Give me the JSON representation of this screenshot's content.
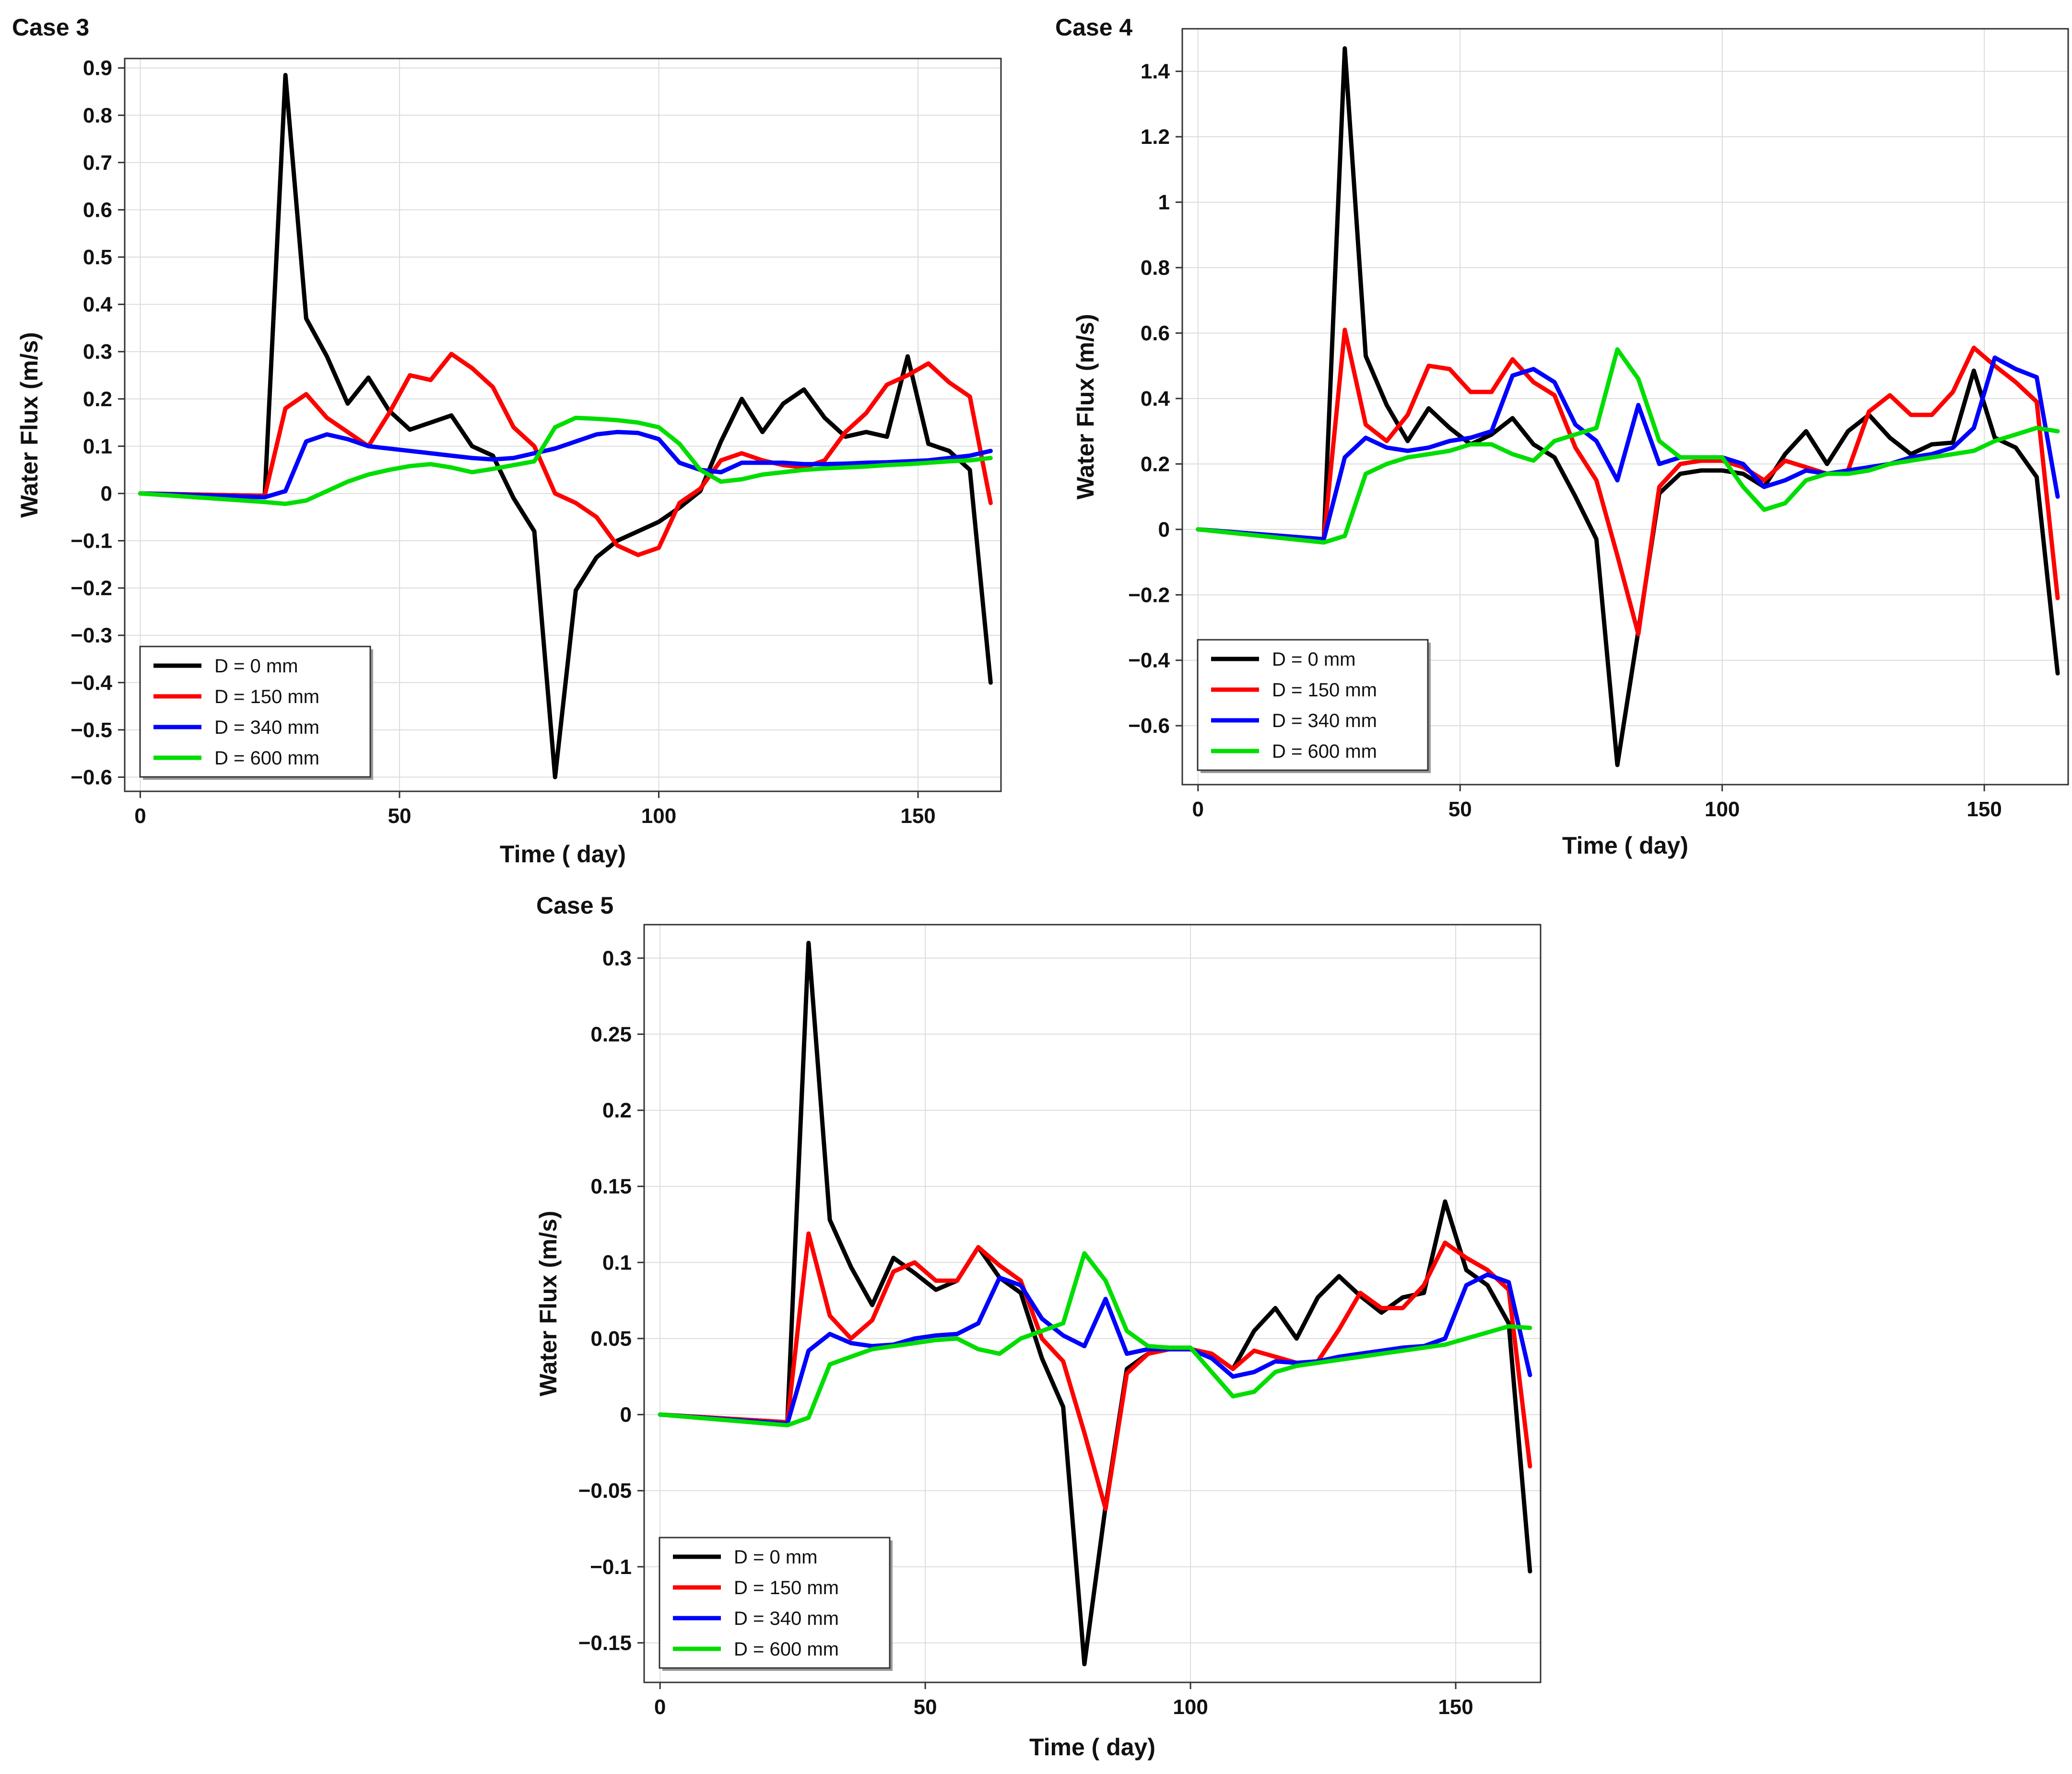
{
  "chart_data": [
    {
      "type": "line",
      "title": "Case 3",
      "xlabel": "Time ( day)",
      "ylabel": "Water Flux (m/s)",
      "xlim": [
        -3,
        166
      ],
      "ylim": [
        -0.63,
        0.92
      ],
      "xticks": [
        0,
        50,
        100,
        150
      ],
      "xtick_labels": [
        "0",
        "50",
        "100",
        "150"
      ],
      "yticks": [
        -0.6,
        -0.5,
        -0.4,
        -0.3,
        -0.2,
        -0.1,
        0,
        0.1,
        0.2,
        0.3,
        0.4,
        0.5,
        0.6,
        0.7,
        0.8,
        0.9
      ],
      "ytick_labels": [
        "−0.6",
        "−0.5",
        "−0.4",
        "−0.3",
        "−0.2",
        "−0.1",
        "0",
        "0.1",
        "0.2",
        "0.3",
        "0.4",
        "0.5",
        "0.6",
        "0.7",
        "0.8",
        "0.9"
      ],
      "grid": true,
      "legend_position": "bottom-left",
      "series": [
        {
          "name": "D = 0 mm",
          "color": "#000000",
          "x": [
            0,
            24,
            28,
            32,
            36,
            40,
            44,
            48,
            52,
            56,
            60,
            64,
            68,
            72,
            76,
            80,
            84,
            88,
            92,
            96,
            100,
            104,
            108,
            112,
            116,
            120,
            124,
            128,
            132,
            136,
            140,
            144,
            148,
            152,
            156,
            160,
            164
          ],
          "y": [
            0,
            -0.005,
            0.885,
            0.37,
            0.29,
            0.19,
            0.245,
            0.175,
            0.135,
            0.15,
            0.165,
            0.1,
            0.08,
            -0.01,
            -0.08,
            -0.6,
            -0.205,
            -0.135,
            -0.1,
            -0.08,
            -0.06,
            -0.03,
            0.005,
            0.11,
            0.2,
            0.13,
            0.19,
            0.22,
            0.16,
            0.12,
            0.13,
            0.12,
            0.29,
            0.105,
            0.09,
            0.05,
            -0.4
          ]
        },
        {
          "name": "D = 150 mm",
          "color": "#ff0000",
          "x": [
            0,
            24,
            28,
            32,
            36,
            40,
            44,
            48,
            52,
            56,
            60,
            64,
            68,
            72,
            76,
            80,
            84,
            88,
            92,
            96,
            100,
            104,
            108,
            112,
            116,
            120,
            124,
            128,
            132,
            136,
            140,
            144,
            148,
            152,
            156,
            160,
            164
          ],
          "y": [
            0,
            -0.005,
            0.18,
            0.21,
            0.16,
            0.13,
            0.1,
            0.17,
            0.25,
            0.24,
            0.295,
            0.265,
            0.225,
            0.14,
            0.1,
            0,
            -0.02,
            -0.05,
            -0.11,
            -0.13,
            -0.115,
            -0.02,
            0.01,
            0.07,
            0.085,
            0.07,
            0.06,
            0.055,
            0.07,
            0.13,
            0.17,
            0.23,
            0.25,
            0.275,
            0.235,
            0.205,
            -0.02
          ]
        },
        {
          "name": "D = 340 mm",
          "color": "#0000ff",
          "x": [
            0,
            24,
            28,
            32,
            36,
            40,
            44,
            48,
            52,
            56,
            60,
            64,
            68,
            72,
            76,
            80,
            84,
            88,
            92,
            96,
            100,
            104,
            108,
            112,
            116,
            120,
            124,
            128,
            132,
            136,
            140,
            144,
            148,
            152,
            156,
            160,
            164
          ],
          "y": [
            0,
            -0.008,
            0.005,
            0.11,
            0.125,
            0.115,
            0.1,
            0.095,
            0.09,
            0.085,
            0.08,
            0.075,
            0.072,
            0.075,
            0.085,
            0.095,
            0.11,
            0.125,
            0.13,
            0.128,
            0.115,
            0.065,
            0.05,
            0.045,
            0.065,
            0.065,
            0.065,
            0.062,
            0.062,
            0.063,
            0.065,
            0.066,
            0.068,
            0.07,
            0.075,
            0.08,
            0.09
          ]
        },
        {
          "name": "D = 600 mm",
          "color": "#00dd00",
          "x": [
            0,
            24,
            28,
            32,
            36,
            40,
            44,
            48,
            52,
            56,
            60,
            64,
            68,
            72,
            76,
            80,
            84,
            88,
            92,
            96,
            100,
            104,
            108,
            112,
            116,
            120,
            124,
            128,
            132,
            136,
            140,
            144,
            148,
            152,
            156,
            160,
            164
          ],
          "y": [
            0,
            -0.018,
            -0.022,
            -0.015,
            0.005,
            0.025,
            0.04,
            0.05,
            0.058,
            0.062,
            0.055,
            0.045,
            0.052,
            0.06,
            0.068,
            0.14,
            0.16,
            0.158,
            0.155,
            0.15,
            0.14,
            0.105,
            0.05,
            0.025,
            0.03,
            0.04,
            0.045,
            0.05,
            0.053,
            0.055,
            0.057,
            0.06,
            0.062,
            0.065,
            0.068,
            0.07,
            0.075
          ]
        }
      ]
    },
    {
      "type": "line",
      "title": "Case 4",
      "xlabel": "Time ( day)",
      "ylabel": "Water Flux (m/s)",
      "xlim": [
        -3,
        166
      ],
      "ylim": [
        -0.78,
        1.53
      ],
      "xticks": [
        0,
        50,
        100,
        150
      ],
      "xtick_labels": [
        "0",
        "50",
        "100",
        "150"
      ],
      "yticks": [
        -0.6,
        -0.4,
        -0.2,
        0,
        0.2,
        0.4,
        0.6,
        0.8,
        1,
        1.2,
        1.4
      ],
      "ytick_labels": [
        "−0.6",
        "−0.4",
        "−0.2",
        "0",
        "0.2",
        "0.4",
        "0.6",
        "0.8",
        "1",
        "1.2",
        "1.4"
      ],
      "grid": true,
      "legend_position": "bottom-left",
      "series": [
        {
          "name": "D = 0 mm",
          "color": "#000000",
          "x": [
            0,
            24,
            28,
            32,
            36,
            40,
            44,
            48,
            52,
            56,
            60,
            64,
            68,
            72,
            76,
            80,
            84,
            88,
            92,
            96,
            100,
            104,
            108,
            112,
            116,
            120,
            124,
            128,
            132,
            136,
            140,
            144,
            148,
            152,
            156,
            160,
            164
          ],
          "y": [
            0,
            -0.03,
            1.47,
            0.53,
            0.38,
            0.27,
            0.37,
            0.31,
            0.26,
            0.29,
            0.34,
            0.26,
            0.22,
            0.1,
            -0.03,
            -0.72,
            -0.31,
            0.11,
            0.17,
            0.18,
            0.18,
            0.17,
            0.13,
            0.23,
            0.3,
            0.2,
            0.3,
            0.35,
            0.28,
            0.23,
            0.26,
            0.265,
            0.485,
            0.28,
            0.25,
            0.16,
            -0.44
          ]
        },
        {
          "name": "D = 150 mm",
          "color": "#ff0000",
          "x": [
            0,
            24,
            28,
            32,
            36,
            40,
            44,
            48,
            52,
            56,
            60,
            64,
            68,
            72,
            76,
            80,
            84,
            88,
            92,
            96,
            100,
            104,
            108,
            112,
            116,
            120,
            124,
            128,
            132,
            136,
            140,
            144,
            148,
            152,
            156,
            160,
            164
          ],
          "y": [
            0,
            -0.03,
            0.61,
            0.32,
            0.27,
            0.35,
            0.5,
            0.49,
            0.42,
            0.42,
            0.52,
            0.45,
            0.41,
            0.25,
            0.15,
            -0.08,
            -0.32,
            0.13,
            0.2,
            0.21,
            0.21,
            0.19,
            0.15,
            0.21,
            0.19,
            0.17,
            0.18,
            0.36,
            0.41,
            0.35,
            0.35,
            0.42,
            0.555,
            0.5,
            0.45,
            0.39,
            -0.21
          ]
        },
        {
          "name": "D = 340 mm",
          "color": "#0000ff",
          "x": [
            0,
            24,
            28,
            32,
            36,
            40,
            44,
            48,
            52,
            56,
            60,
            64,
            68,
            72,
            76,
            80,
            84,
            88,
            92,
            96,
            100,
            104,
            108,
            112,
            116,
            120,
            124,
            128,
            132,
            136,
            140,
            144,
            148,
            152,
            156,
            160,
            164
          ],
          "y": [
            0,
            -0.03,
            0.22,
            0.28,
            0.25,
            0.24,
            0.25,
            0.27,
            0.28,
            0.3,
            0.47,
            0.49,
            0.45,
            0.32,
            0.27,
            0.15,
            0.38,
            0.2,
            0.22,
            0.22,
            0.22,
            0.2,
            0.13,
            0.15,
            0.18,
            0.17,
            0.18,
            0.19,
            0.2,
            0.22,
            0.23,
            0.25,
            0.31,
            0.525,
            0.49,
            0.465,
            0.1
          ]
        },
        {
          "name": "D = 600 mm",
          "color": "#00dd00",
          "x": [
            0,
            24,
            28,
            32,
            36,
            40,
            44,
            48,
            52,
            56,
            60,
            64,
            68,
            72,
            76,
            80,
            84,
            88,
            92,
            96,
            100,
            104,
            108,
            112,
            116,
            120,
            124,
            128,
            132,
            136,
            140,
            144,
            148,
            152,
            156,
            160,
            164
          ],
          "y": [
            0,
            -0.04,
            -0.02,
            0.17,
            0.2,
            0.22,
            0.23,
            0.24,
            0.26,
            0.26,
            0.23,
            0.21,
            0.27,
            0.29,
            0.31,
            0.55,
            0.46,
            0.27,
            0.22,
            0.22,
            0.22,
            0.13,
            0.06,
            0.08,
            0.15,
            0.17,
            0.17,
            0.18,
            0.2,
            0.21,
            0.22,
            0.23,
            0.24,
            0.27,
            0.29,
            0.31,
            0.3
          ]
        }
      ]
    },
    {
      "type": "line",
      "title": "Case 5",
      "xlabel": "Time ( day)",
      "ylabel": "Water Flux (m/s)",
      "xlim": [
        -3,
        166
      ],
      "ylim": [
        -0.176,
        0.322
      ],
      "xticks": [
        0,
        50,
        100,
        150
      ],
      "xtick_labels": [
        "0",
        "50",
        "100",
        "150"
      ],
      "yticks": [
        -0.15,
        -0.1,
        -0.05,
        0,
        0.05,
        0.1,
        0.15,
        0.2,
        0.25,
        0.3
      ],
      "ytick_labels": [
        "−0.15",
        "−0.1",
        "−0.05",
        "0",
        "0.05",
        "0.1",
        "0.15",
        "0.2",
        "0.25",
        "0.3"
      ],
      "grid": true,
      "legend_position": "bottom-left",
      "series": [
        {
          "name": "D = 0 mm",
          "color": "#000000",
          "x": [
            0,
            24,
            28,
            32,
            36,
            40,
            44,
            48,
            52,
            56,
            60,
            64,
            68,
            72,
            76,
            80,
            84,
            88,
            92,
            96,
            100,
            104,
            108,
            112,
            116,
            120,
            124,
            128,
            132,
            136,
            140,
            144,
            148,
            152,
            156,
            160,
            164
          ],
          "y": [
            0,
            -0.005,
            0.31,
            0.128,
            0.097,
            0.072,
            0.103,
            0.093,
            0.082,
            0.088,
            0.11,
            0.09,
            0.08,
            0.037,
            0.005,
            -0.164,
            -0.06,
            0.03,
            0.04,
            0.043,
            0.043,
            0.04,
            0.03,
            0.055,
            0.07,
            0.05,
            0.077,
            0.091,
            0.078,
            0.067,
            0.077,
            0.08,
            0.14,
            0.095,
            0.085,
            0.06,
            -0.103
          ]
        },
        {
          "name": "D = 150 mm",
          "color": "#ff0000",
          "x": [
            0,
            24,
            28,
            32,
            36,
            40,
            44,
            48,
            52,
            56,
            60,
            64,
            68,
            72,
            76,
            80,
            84,
            88,
            92,
            96,
            100,
            104,
            108,
            112,
            116,
            120,
            124,
            128,
            132,
            136,
            140,
            144,
            148,
            152,
            156,
            160,
            164
          ],
          "y": [
            0,
            -0.005,
            0.119,
            0.065,
            0.05,
            0.062,
            0.094,
            0.1,
            0.088,
            0.088,
            0.11,
            0.098,
            0.088,
            0.05,
            0.035,
            -0.012,
            -0.062,
            0.027,
            0.04,
            0.043,
            0.043,
            0.04,
            0.03,
            0.042,
            0.038,
            0.034,
            0.035,
            0.056,
            0.08,
            0.07,
            0.07,
            0.085,
            0.113,
            0.103,
            0.095,
            0.082,
            -0.034
          ]
        },
        {
          "name": "D = 340 mm",
          "color": "#0000ff",
          "x": [
            0,
            24,
            28,
            32,
            36,
            40,
            44,
            48,
            52,
            56,
            60,
            64,
            68,
            72,
            76,
            80,
            84,
            88,
            92,
            96,
            100,
            104,
            108,
            112,
            116,
            120,
            124,
            128,
            132,
            136,
            140,
            144,
            148,
            152,
            156,
            160,
            164
          ],
          "y": [
            0,
            -0.006,
            0.042,
            0.053,
            0.047,
            0.045,
            0.046,
            0.05,
            0.052,
            0.053,
            0.06,
            0.09,
            0.085,
            0.063,
            0.052,
            0.045,
            0.076,
            0.04,
            0.043,
            0.043,
            0.043,
            0.037,
            0.025,
            0.028,
            0.035,
            0.034,
            0.035,
            0.038,
            0.04,
            0.042,
            0.044,
            0.045,
            0.05,
            0.085,
            0.092,
            0.087,
            0.026
          ]
        },
        {
          "name": "D = 600 mm",
          "color": "#00dd00",
          "x": [
            0,
            24,
            28,
            32,
            36,
            40,
            44,
            48,
            52,
            56,
            60,
            64,
            68,
            72,
            76,
            80,
            84,
            88,
            92,
            96,
            100,
            104,
            108,
            112,
            116,
            120,
            124,
            128,
            132,
            136,
            140,
            144,
            148,
            152,
            156,
            160,
            164
          ],
          "y": [
            0,
            -0.007,
            -0.002,
            0.033,
            0.038,
            0.043,
            0.045,
            0.047,
            0.049,
            0.05,
            0.043,
            0.04,
            0.05,
            0.055,
            0.06,
            0.106,
            0.088,
            0.055,
            0.045,
            0.044,
            0.044,
            0.028,
            0.012,
            0.015,
            0.028,
            0.032,
            0.034,
            0.036,
            0.038,
            0.04,
            0.042,
            0.044,
            0.046,
            0.05,
            0.054,
            0.058,
            0.057
          ]
        }
      ]
    }
  ]
}
